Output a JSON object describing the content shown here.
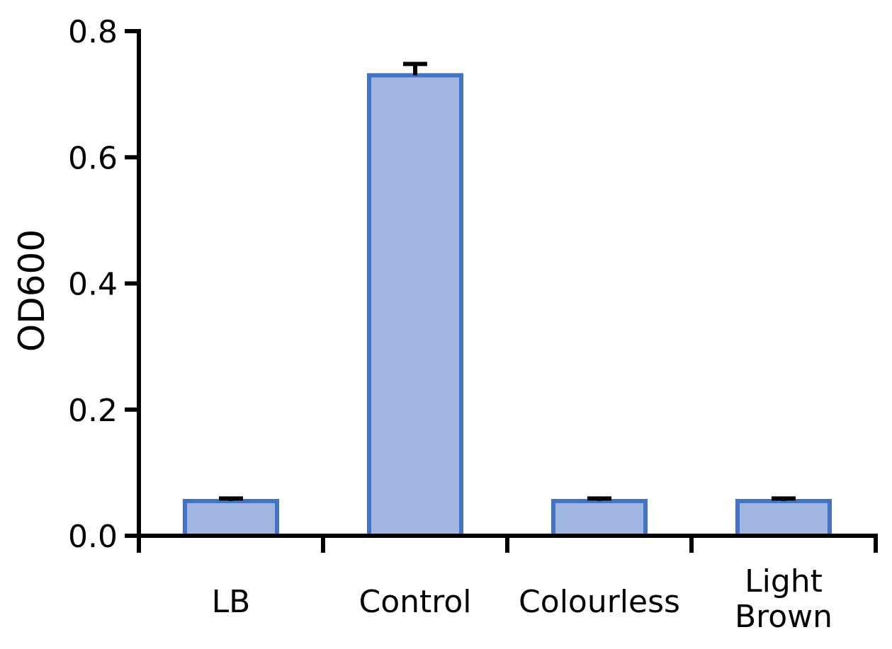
{
  "chart_data": {
    "type": "bar",
    "title": "",
    "xlabel": "",
    "ylabel": "OD600",
    "ylim": [
      0,
      0.8
    ],
    "yticks": [
      0.0,
      0.2,
      0.4,
      0.6,
      0.8
    ],
    "ytick_labels": [
      "0.0",
      "0.2",
      "0.4",
      "0.6",
      "0.8"
    ],
    "categories": [
      "LB",
      "Control",
      "Colourless",
      "Light Brown"
    ],
    "category_lines": [
      [
        "LB"
      ],
      [
        "Control"
      ],
      [
        "Colourless"
      ],
      [
        "Light",
        "Brown"
      ]
    ],
    "values": [
      0.055,
      0.73,
      0.055,
      0.055
    ],
    "errors": [
      0.004,
      0.018,
      0.004,
      0.004
    ],
    "grid": false,
    "bar_fill_color": "#a1b6e0",
    "bar_edge_color": "#4472c4",
    "axis_color": "#000000"
  }
}
